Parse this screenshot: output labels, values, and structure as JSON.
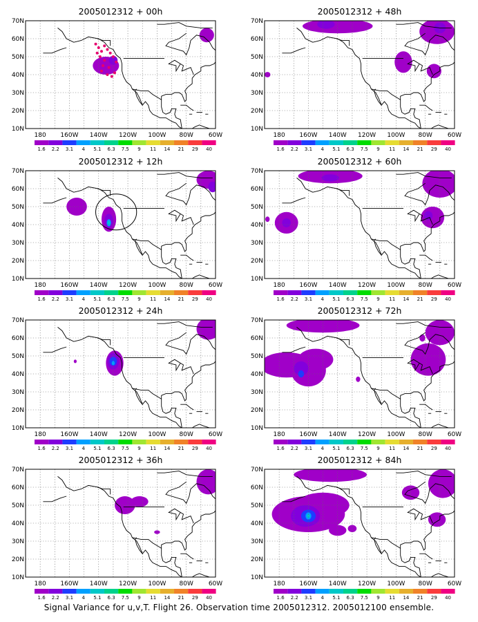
{
  "caption": "Signal Variance for u,v,T. Flight 26. Observation time 2005012312. 2005012100 ensemble.",
  "chart_data": {
    "type": "heatmap",
    "xlabel": "",
    "ylabel": "",
    "lon_ticks": [
      "180",
      "160W",
      "140W",
      "120W",
      "100W",
      "80W",
      "60W"
    ],
    "lat_ticks": [
      "10N",
      "20N",
      "30N",
      "40N",
      "50N",
      "60N",
      "70N"
    ],
    "xlim_lon": [
      -190,
      -60
    ],
    "ylim_lat": [
      10,
      70
    ],
    "colorbar": {
      "levels": [
        "1.6",
        "2.2",
        "3.1",
        "4",
        "5.1",
        "6.3",
        "7.5",
        "9",
        "11",
        "14",
        "21",
        "29",
        "40"
      ],
      "colors": [
        "#a000c8",
        "#8200dc",
        "#1e3cff",
        "#00a0ff",
        "#00c8c8",
        "#00d28c",
        "#00dc00",
        "#a0e632",
        "#e6dc32",
        "#e6af2d",
        "#f08228",
        "#fa3c3c",
        "#f00082"
      ]
    },
    "panels": [
      {
        "title": "2005012312 + 00h",
        "lead_hours": 0,
        "blobs": [
          {
            "lon": -135,
            "lat": 45,
            "rlon": 9,
            "rlat": 5,
            "level": 0
          },
          {
            "lon": -130,
            "lat": 48,
            "rlon": 3,
            "rlat": 2.5,
            "level": 1
          },
          {
            "lon": -66,
            "lat": 62,
            "rlon": 5,
            "rlat": 4,
            "level": 0
          }
        ],
        "observations": [
          [
            -142,
            57
          ],
          [
            -140,
            55
          ],
          [
            -138,
            53
          ],
          [
            -141,
            52
          ],
          [
            -139,
            50
          ],
          [
            -136,
            48
          ],
          [
            -137,
            45
          ],
          [
            -138,
            42
          ],
          [
            -134,
            40
          ],
          [
            -133,
            44
          ],
          [
            -132,
            52
          ],
          [
            -130,
            50
          ],
          [
            -128,
            47
          ],
          [
            -131,
            39
          ],
          [
            -129,
            41
          ],
          [
            -136,
            56
          ],
          [
            -134,
            54
          ]
        ],
        "ring": null
      },
      {
        "title": "2005012312 + 48h",
        "lead_hours": 48,
        "blobs": [
          {
            "lon": -140,
            "lat": 67,
            "rlon": 24,
            "rlat": 4,
            "level": 0
          },
          {
            "lon": -148,
            "lat": 68,
            "rlon": 6,
            "rlat": 2.5,
            "level": 1
          },
          {
            "lon": -95,
            "lat": 47,
            "rlon": 6,
            "rlat": 6,
            "level": 0
          },
          {
            "lon": -72,
            "lat": 64,
            "rlon": 12,
            "rlat": 7,
            "level": 0
          },
          {
            "lon": -70,
            "lat": 66,
            "rlon": 4,
            "rlat": 3,
            "level": 1
          },
          {
            "lon": -74,
            "lat": 42,
            "rlon": 5,
            "rlat": 4,
            "level": 0
          },
          {
            "lon": -188,
            "lat": 40,
            "rlon": 2,
            "rlat": 1.5,
            "level": 0
          }
        ],
        "observations": [],
        "ring": null
      },
      {
        "title": "2005012312 + 12h",
        "lead_hours": 12,
        "blobs": [
          {
            "lon": -155,
            "lat": 50,
            "rlon": 7,
            "rlat": 5,
            "level": 0
          },
          {
            "lon": -133,
            "lat": 43,
            "rlon": 5,
            "rlat": 7,
            "level": 0
          },
          {
            "lon": -133,
            "lat": 42,
            "rlon": 3,
            "rlat": 4,
            "level": 1
          },
          {
            "lon": -133,
            "lat": 41,
            "rlon": 1.5,
            "rlat": 2,
            "level": 3
          },
          {
            "lon": -133,
            "lat": 41,
            "rlon": 0.7,
            "rlat": 1,
            "level": 4
          },
          {
            "lon": -65,
            "lat": 65,
            "rlon": 8,
            "rlat": 5,
            "level": 0
          },
          {
            "lon": -62,
            "lat": 61,
            "rlon": 3,
            "rlat": 3,
            "level": 1
          }
        ],
        "observations": [],
        "ring": {
          "lon": -128,
          "lat": 47,
          "rlon": 14,
          "rlat": 10
        }
      },
      {
        "title": "2005012312 + 60h",
        "lead_hours": 60,
        "blobs": [
          {
            "lon": -175,
            "lat": 41,
            "rlon": 8,
            "rlat": 6,
            "level": 0
          },
          {
            "lon": -175,
            "lat": 41,
            "rlon": 3,
            "rlat": 2.5,
            "level": 1
          },
          {
            "lon": -145,
            "lat": 67,
            "rlon": 22,
            "rlat": 4,
            "level": 0
          },
          {
            "lon": -145,
            "lat": 66,
            "rlon": 6,
            "rlat": 2,
            "level": 1
          },
          {
            "lon": -70,
            "lat": 63,
            "rlon": 12,
            "rlat": 8,
            "level": 0
          },
          {
            "lon": -75,
            "lat": 44,
            "rlon": 8,
            "rlat": 6,
            "level": 0
          },
          {
            "lon": -78,
            "lat": 45,
            "rlon": 3,
            "rlat": 2.5,
            "level": 1
          },
          {
            "lon": -188,
            "lat": 43,
            "rlon": 1.5,
            "rlat": 1.5,
            "level": 0
          }
        ],
        "observations": [],
        "ring": null
      },
      {
        "title": "2005012312 + 24h",
        "lead_hours": 24,
        "blobs": [
          {
            "lon": -129,
            "lat": 46,
            "rlon": 6,
            "rlat": 7,
            "level": 0
          },
          {
            "lon": -130,
            "lat": 47,
            "rlon": 4,
            "rlat": 4.5,
            "level": 1
          },
          {
            "lon": -130,
            "lat": 47,
            "rlon": 2.5,
            "rlat": 2.5,
            "level": 2
          },
          {
            "lon": -130,
            "lat": 46,
            "rlon": 1,
            "rlat": 1.2,
            "level": 3
          },
          {
            "lon": -156,
            "lat": 47,
            "rlon": 1,
            "rlat": 1,
            "level": 0
          },
          {
            "lon": -65,
            "lat": 65,
            "rlon": 8,
            "rlat": 6,
            "level": 0
          }
        ],
        "observations": [],
        "ring": null
      },
      {
        "title": "2005012312 + 72h",
        "lead_hours": 72,
        "blobs": [
          {
            "lon": -175,
            "lat": 45,
            "rlon": 18,
            "rlat": 7,
            "level": 0
          },
          {
            "lon": -160,
            "lat": 42,
            "rlon": 12,
            "rlat": 9,
            "level": 0
          },
          {
            "lon": -155,
            "lat": 48,
            "rlon": 12,
            "rlat": 6,
            "level": 0
          },
          {
            "lon": -165,
            "lat": 43,
            "rlon": 5,
            "rlat": 4,
            "level": 1
          },
          {
            "lon": -165,
            "lat": 40,
            "rlon": 2,
            "rlat": 2,
            "level": 2
          },
          {
            "lon": -150,
            "lat": 67,
            "rlon": 25,
            "rlat": 4,
            "level": 0
          },
          {
            "lon": -78,
            "lat": 48,
            "rlon": 12,
            "rlat": 9,
            "level": 0
          },
          {
            "lon": -70,
            "lat": 63,
            "rlon": 10,
            "rlat": 7,
            "level": 0
          },
          {
            "lon": -82,
            "lat": 60,
            "rlon": 2,
            "rlat": 2,
            "level": 0
          },
          {
            "lon": -126,
            "lat": 37,
            "rlon": 1.5,
            "rlat": 1.5,
            "level": 0
          }
        ],
        "observations": [],
        "ring": null
      },
      {
        "title": "2005012312 + 36h",
        "lead_hours": 36,
        "blobs": [
          {
            "lon": -122,
            "lat": 50,
            "rlon": 7,
            "rlat": 5,
            "level": 0
          },
          {
            "lon": -112,
            "lat": 52,
            "rlon": 6,
            "rlat": 3,
            "level": 0
          },
          {
            "lon": -65,
            "lat": 63,
            "rlon": 8,
            "rlat": 7,
            "level": 0
          },
          {
            "lon": -100,
            "lat": 35,
            "rlon": 2,
            "rlat": 1,
            "level": 0
          }
        ],
        "observations": [],
        "ring": null
      },
      {
        "title": "2005012312 + 84h",
        "lead_hours": 84,
        "blobs": [
          {
            "lon": -160,
            "lat": 45,
            "rlon": 25,
            "rlat": 10,
            "level": 0
          },
          {
            "lon": -150,
            "lat": 50,
            "rlon": 18,
            "rlat": 7,
            "level": 0
          },
          {
            "lon": -162,
            "lat": 44,
            "rlon": 10,
            "rlat": 6,
            "level": 1
          },
          {
            "lon": -160,
            "lat": 44,
            "rlon": 5,
            "rlat": 3.5,
            "level": 2
          },
          {
            "lon": -160,
            "lat": 44,
            "rlon": 2,
            "rlat": 2,
            "level": 3
          },
          {
            "lon": -160,
            "lat": 44,
            "rlon": 1,
            "rlat": 1,
            "level": 4
          },
          {
            "lon": -145,
            "lat": 67,
            "rlon": 25,
            "rlat": 4,
            "level": 0
          },
          {
            "lon": -90,
            "lat": 57,
            "rlon": 6,
            "rlat": 4,
            "level": 0
          },
          {
            "lon": -68,
            "lat": 62,
            "rlon": 10,
            "rlat": 8,
            "level": 0
          },
          {
            "lon": -72,
            "lat": 42,
            "rlon": 6,
            "rlat": 4,
            "level": 0
          },
          {
            "lon": -140,
            "lat": 36,
            "rlon": 6,
            "rlat": 3,
            "level": 0
          },
          {
            "lon": -130,
            "lat": 37,
            "rlon": 3,
            "rlat": 2,
            "level": 0
          }
        ],
        "observations": [],
        "ring": null
      }
    ]
  }
}
